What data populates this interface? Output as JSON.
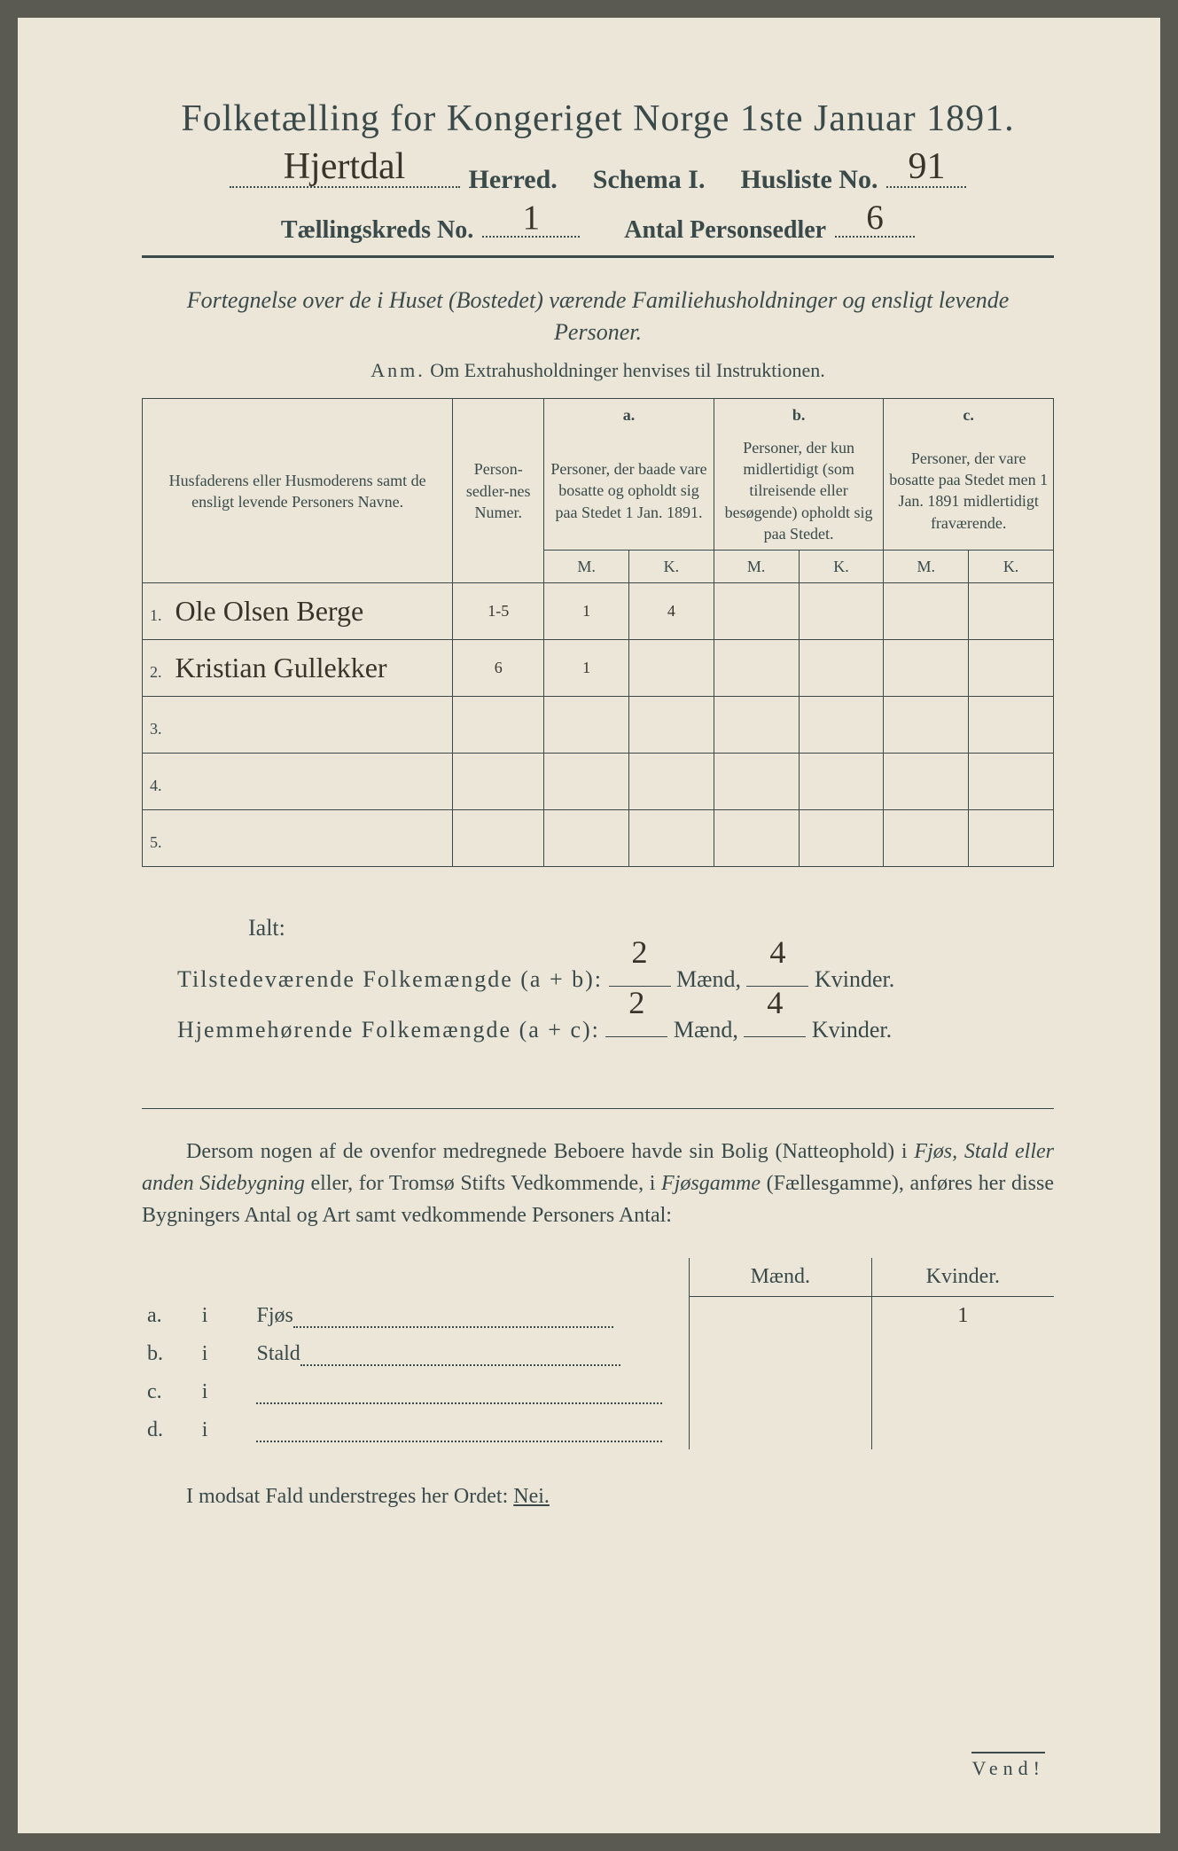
{
  "header": {
    "title": "Folketælling for Kongeriget Norge 1ste Januar 1891.",
    "herred_hw": "Hjertdal",
    "herred_label": "Herred.",
    "schema_label": "Schema I.",
    "husliste_label": "Husliste No.",
    "husliste_hw": "91",
    "kreds_label": "Tællingskreds No.",
    "kreds_hw": "1",
    "antal_label": "Antal Personsedler",
    "antal_hw": "6"
  },
  "subtitle": "Fortegnelse over de i Huset (Bostedet) værende Familiehusholdninger og ensligt levende Personer.",
  "anm_label": "Anm.",
  "anm_text": "Om Extrahusholdninger henvises til Instruktionen.",
  "table": {
    "head": {
      "col1": "Husfaderens eller Husmoderens samt de ensligt levende Personers Navne.",
      "col2": "Person-sedler-nes Numer.",
      "a_label": "a.",
      "a_text": "Personer, der baade vare bosatte og opholdt sig paa Stedet 1 Jan. 1891.",
      "b_label": "b.",
      "b_text": "Personer, der kun midlertidigt (som tilreisende eller besøgende) opholdt sig paa Stedet.",
      "c_label": "c.",
      "c_text": "Personer, der vare bosatte paa Stedet men 1 Jan. 1891 midlertidigt fraværende.",
      "m": "M.",
      "k": "K."
    },
    "rows": [
      {
        "n": "1.",
        "name": "Ole Olsen Berge",
        "num": "1-5",
        "am": "1",
        "ak": "4",
        "bm": "",
        "bk": "",
        "cm": "",
        "ck": ""
      },
      {
        "n": "2.",
        "name": "Kristian Gullekker",
        "num": "6",
        "am": "1",
        "ak": "",
        "bm": "",
        "bk": "",
        "cm": "",
        "ck": ""
      },
      {
        "n": "3.",
        "name": "",
        "num": "",
        "am": "",
        "ak": "",
        "bm": "",
        "bk": "",
        "cm": "",
        "ck": ""
      },
      {
        "n": "4.",
        "name": "",
        "num": "",
        "am": "",
        "ak": "",
        "bm": "",
        "bk": "",
        "cm": "",
        "ck": ""
      },
      {
        "n": "5.",
        "name": "",
        "num": "",
        "am": "",
        "ak": "",
        "bm": "",
        "bk": "",
        "cm": "",
        "ck": ""
      }
    ]
  },
  "totals": {
    "ialt": "Ialt:",
    "line1_label": "Tilstedeværende Folkemængde (a + b):",
    "line2_label": "Hjemmehørende Folkemængde (a + c):",
    "maend": "Mænd,",
    "kvinder": "Kvinder.",
    "l1_m": "2",
    "l1_k": "4",
    "l2_m": "2",
    "l2_k": "4"
  },
  "para": {
    "p1a": "Dersom nogen af de ovenfor medregnede Beboere havde sin Bolig (Natteophold) i ",
    "p1b": "Fjøs, Stald eller anden Sidebygning",
    "p1c": " eller, for Tromsø Stifts Vedkommende, i ",
    "p1d": "Fjøsgamme",
    "p1e": " (Fællesgamme), anføres her disse Bygningers Antal og Art samt vedkommende Personers Antal:"
  },
  "bygning": {
    "maend": "Mænd.",
    "kvinder": "Kvinder.",
    "rows": [
      {
        "idx": "a.",
        "i": "i",
        "label": "Fjøs",
        "m": "",
        "k": "1"
      },
      {
        "idx": "b.",
        "i": "i",
        "label": "Stald",
        "m": "",
        "k": ""
      },
      {
        "idx": "c.",
        "i": "i",
        "label": "",
        "m": "",
        "k": ""
      },
      {
        "idx": "d.",
        "i": "i",
        "label": "",
        "m": "",
        "k": ""
      }
    ]
  },
  "nei_line_a": "I modsat Fald understreges her Ordet: ",
  "nei_line_b": "Nei.",
  "vend": "Vend!"
}
